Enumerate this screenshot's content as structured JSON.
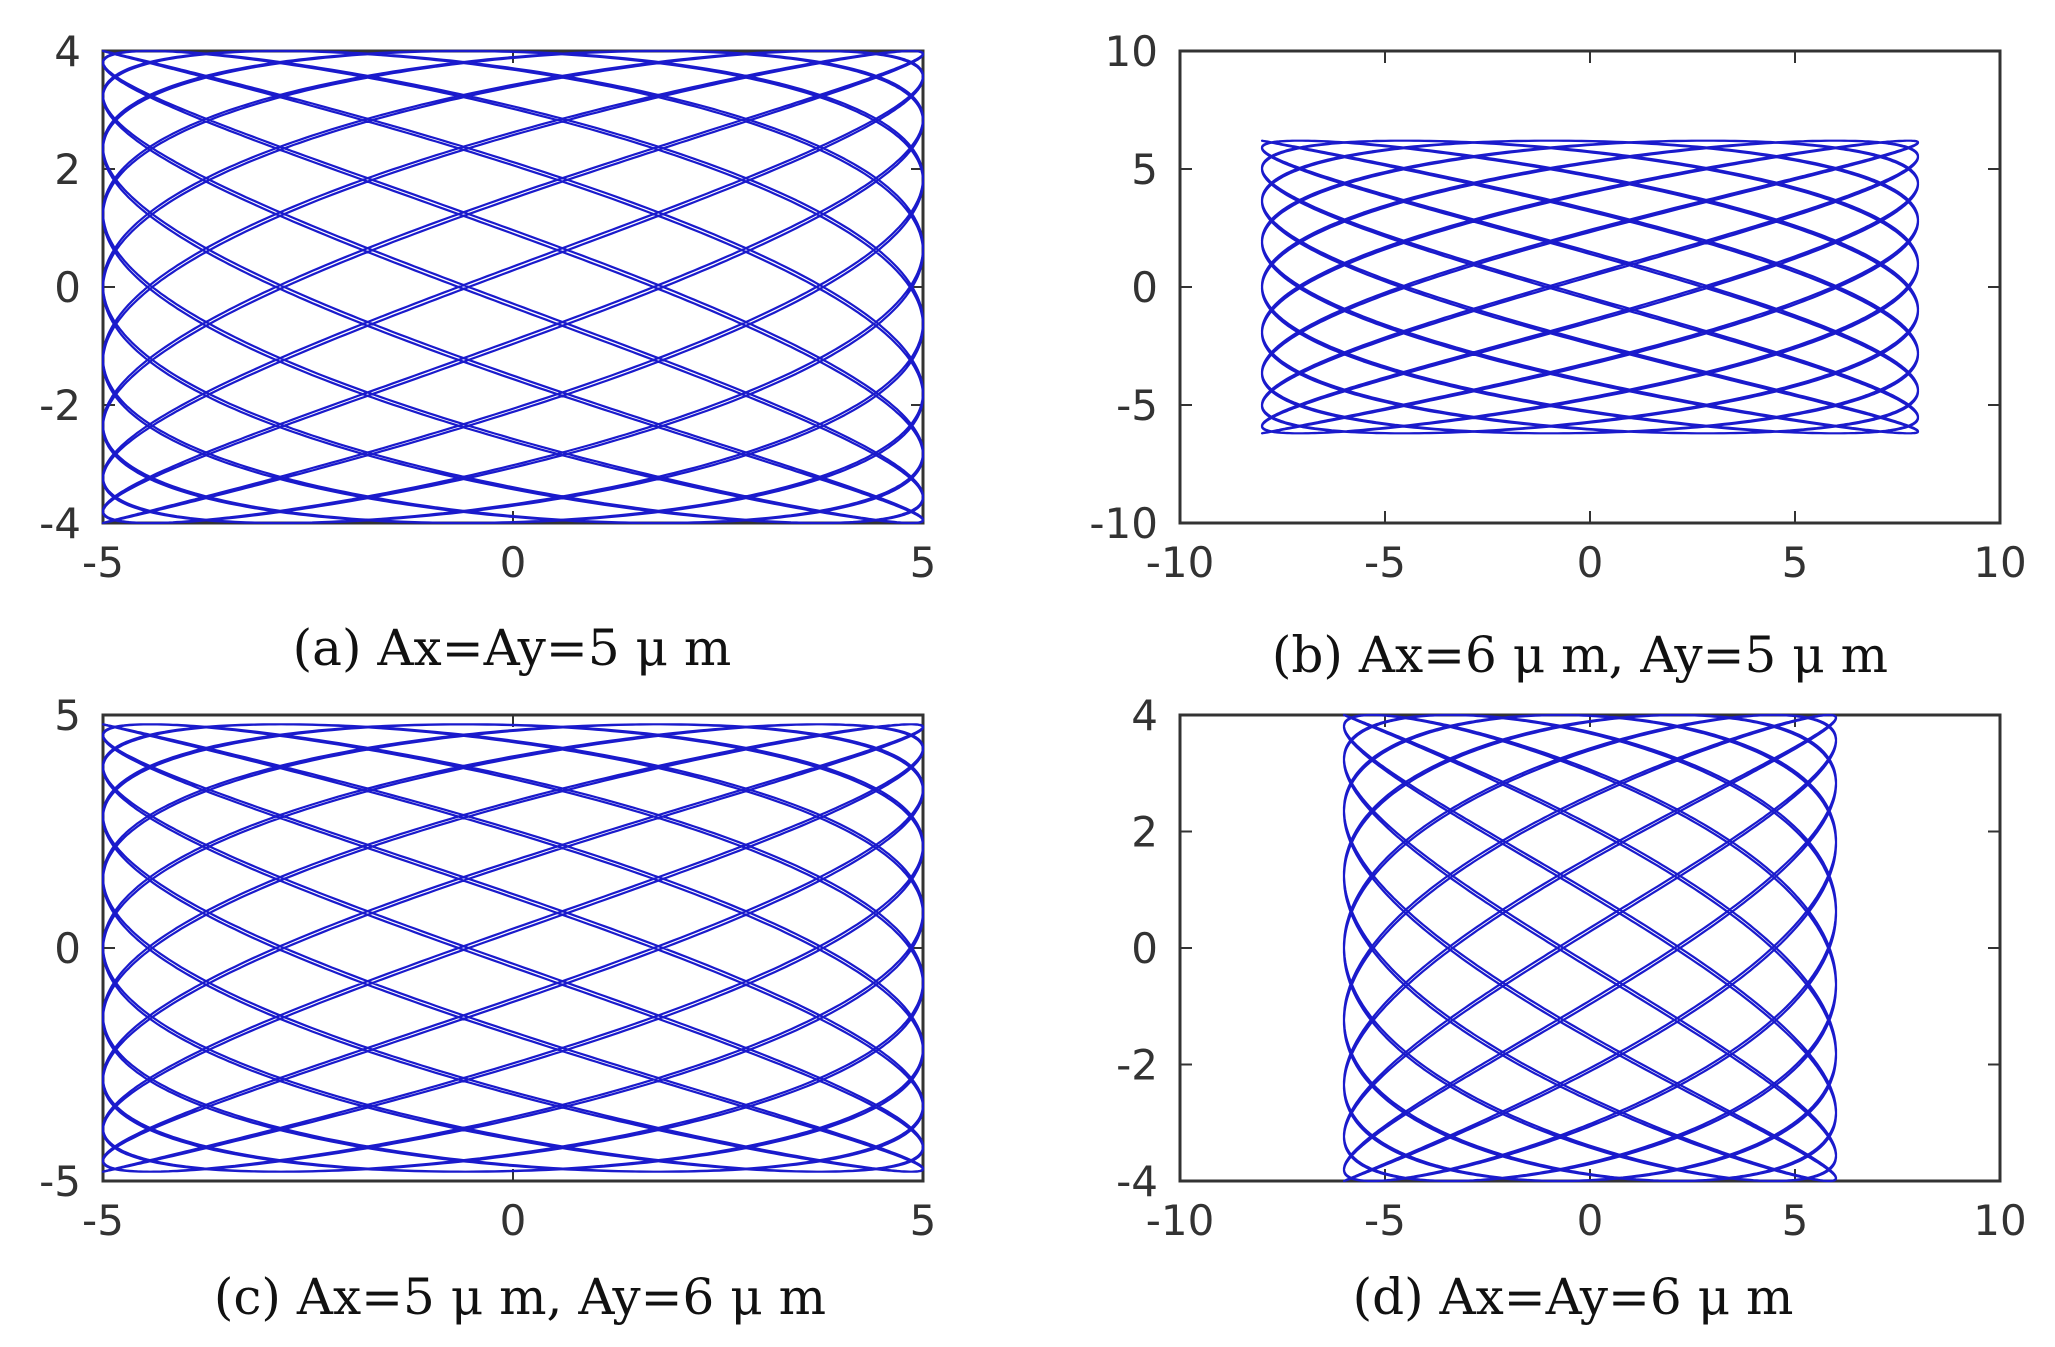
{
  "chart_data": [
    {
      "type": "line",
      "panel": "a",
      "caption": "(a)  Ax=Ay=5 μ m",
      "xlim": [
        -5,
        5
      ],
      "ylim": [
        -4,
        4
      ],
      "xticks": [
        "-5",
        "0",
        "5"
      ],
      "yticks": [
        "4",
        "2",
        "0",
        "-2",
        "-4"
      ],
      "xtick_values": [
        -5,
        0,
        5
      ],
      "ytick_values": [
        4,
        2,
        0,
        -2,
        -4
      ],
      "series": [
        {
          "curve": "lissajous",
          "x_amplitude": 5,
          "y_amplitude": 4
        }
      ],
      "color": "#1a1acc"
    },
    {
      "type": "line",
      "panel": "b",
      "caption": "(b)  Ax=6 μ m, Ay=5 μ m",
      "xlim": [
        -10,
        10
      ],
      "ylim": [
        -10,
        10
      ],
      "xticks": [
        "-10",
        "-5",
        "0",
        "5",
        "10"
      ],
      "yticks": [
        "10",
        "5",
        "0",
        "-5",
        "-10"
      ],
      "xtick_values": [
        -10,
        -5,
        0,
        5,
        10
      ],
      "ytick_values": [
        10,
        5,
        0,
        -5,
        -10
      ],
      "series": [
        {
          "curve": "lissajous",
          "x_amplitude": 8,
          "y_amplitude": 6.2
        }
      ],
      "color": "#1a1acc"
    },
    {
      "type": "line",
      "panel": "c",
      "caption": "(c)  Ax=5 μ m, Ay=6 μ m",
      "xlim": [
        -5,
        5
      ],
      "ylim": [
        -5,
        5
      ],
      "xticks": [
        "-5",
        "0",
        "5"
      ],
      "yticks": [
        "5",
        "0",
        "-5"
      ],
      "xtick_values": [
        -5,
        0,
        5
      ],
      "ytick_values": [
        5,
        0,
        -5
      ],
      "series": [
        {
          "curve": "lissajous",
          "x_amplitude": 5,
          "y_amplitude": 4.8
        }
      ],
      "color": "#1a1acc"
    },
    {
      "type": "line",
      "panel": "d",
      "caption": "(d)  Ax=Ay=6 μ m",
      "xlim": [
        -10,
        10
      ],
      "ylim": [
        -4,
        4
      ],
      "xticks": [
        "-10",
        "-5",
        "0",
        "5",
        "10"
      ],
      "yticks": [
        "4",
        "2",
        "0",
        "-2",
        "-4"
      ],
      "xtick_values": [
        -10,
        -5,
        0,
        5,
        10
      ],
      "ytick_values": [
        4,
        2,
        0,
        -2,
        -4
      ],
      "series": [
        {
          "curve": "lissajous",
          "x_amplitude": 6,
          "y_amplitude": 4
        }
      ],
      "color": "#1a1acc"
    }
  ]
}
